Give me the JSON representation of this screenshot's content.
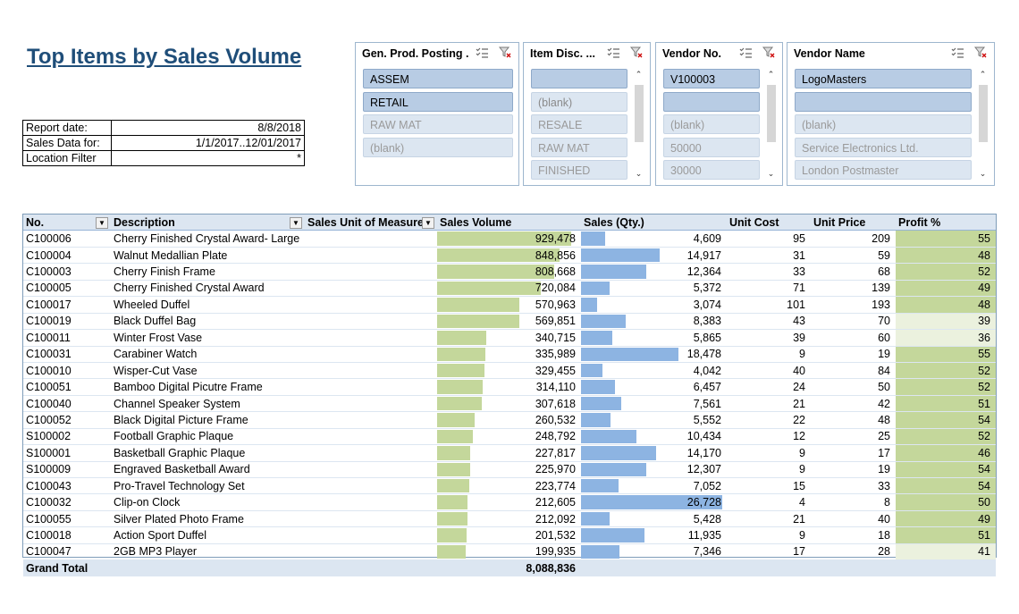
{
  "title": "Top Items by Sales Volume",
  "report_info": [
    {
      "label": "Report date:",
      "value": "8/8/2018"
    },
    {
      "label": "Sales Data for:",
      "value": "1/1/2017..12/01/2017"
    },
    {
      "label": "Location Filter",
      "value": "*"
    }
  ],
  "slicers": [
    {
      "header": "Gen. Prod. Posting ...",
      "items": [
        {
          "label": "ASSEM",
          "state": "selected"
        },
        {
          "label": "RETAIL",
          "state": "selected"
        },
        {
          "label": "RAW MAT",
          "state": "nodata"
        },
        {
          "label": "(blank)",
          "state": "nodata"
        }
      ]
    },
    {
      "header": "Item Disc. ...",
      "items": [
        {
          "label": "",
          "state": "selected"
        },
        {
          "label": "(blank)",
          "state": "unselected"
        },
        {
          "label": "RESALE",
          "state": "nodata"
        },
        {
          "label": "RAW MAT",
          "state": "nodata"
        },
        {
          "label": "FINISHED",
          "state": "nodata"
        }
      ]
    },
    {
      "header": "Vendor No.",
      "items": [
        {
          "label": "V100003",
          "state": "selected"
        },
        {
          "label": "",
          "state": "selected"
        },
        {
          "label": "(blank)",
          "state": "nodata"
        },
        {
          "label": "50000",
          "state": "nodata"
        },
        {
          "label": "30000",
          "state": "nodata"
        }
      ]
    },
    {
      "header": "Vendor Name",
      "items": [
        {
          "label": "LogoMasters",
          "state": "selected"
        },
        {
          "label": "",
          "state": "selected"
        },
        {
          "label": "(blank)",
          "state": "nodata"
        },
        {
          "label": "Service Electronics Ltd.",
          "state": "nodata"
        },
        {
          "label": "London Postmaster",
          "state": "nodata"
        }
      ]
    }
  ],
  "pivot": {
    "headers": {
      "no": "No.",
      "description": "Description",
      "uom": "Sales Unit of Measure",
      "sales_volume": "Sales Volume",
      "sales_qty": "Sales (Qty.)",
      "unit_cost": "Unit Cost",
      "unit_price": "Unit Price",
      "profit": "Profit %"
    },
    "rows": [
      {
        "no": "C100006",
        "desc": "Cherry Finished Crystal Award- Large",
        "uom": "",
        "vol": "929,478",
        "qty": "4,609",
        "cost": "95",
        "price": "209",
        "profit": "55"
      },
      {
        "no": "C100004",
        "desc": "Walnut Medallian Plate",
        "uom": "",
        "vol": "848,856",
        "qty": "14,917",
        "cost": "31",
        "price": "59",
        "profit": "48"
      },
      {
        "no": "C100003",
        "desc": "Cherry Finish Frame",
        "uom": "",
        "vol": "808,668",
        "qty": "12,364",
        "cost": "33",
        "price": "68",
        "profit": "52"
      },
      {
        "no": "C100005",
        "desc": "Cherry Finished Crystal Award",
        "uom": "",
        "vol": "720,084",
        "qty": "5,372",
        "cost": "71",
        "price": "139",
        "profit": "49"
      },
      {
        "no": "C100017",
        "desc": "Wheeled Duffel",
        "uom": "",
        "vol": "570,963",
        "qty": "3,074",
        "cost": "101",
        "price": "193",
        "profit": "48"
      },
      {
        "no": "C100019",
        "desc": "Black Duffel Bag",
        "uom": "",
        "vol": "569,851",
        "qty": "8,383",
        "cost": "43",
        "price": "70",
        "profit": "39"
      },
      {
        "no": "C100011",
        "desc": "Winter Frost Vase",
        "uom": "",
        "vol": "340,715",
        "qty": "5,865",
        "cost": "39",
        "price": "60",
        "profit": "36"
      },
      {
        "no": "C100031",
        "desc": "Carabiner Watch",
        "uom": "",
        "vol": "335,989",
        "qty": "18,478",
        "cost": "9",
        "price": "19",
        "profit": "55"
      },
      {
        "no": "C100010",
        "desc": "Wisper-Cut Vase",
        "uom": "",
        "vol": "329,455",
        "qty": "4,042",
        "cost": "40",
        "price": "84",
        "profit": "52"
      },
      {
        "no": "C100051",
        "desc": "Bamboo Digital Picutre Frame",
        "uom": "",
        "vol": "314,110",
        "qty": "6,457",
        "cost": "24",
        "price": "50",
        "profit": "52"
      },
      {
        "no": "C100040",
        "desc": "Channel Speaker System",
        "uom": "",
        "vol": "307,618",
        "qty": "7,561",
        "cost": "21",
        "price": "42",
        "profit": "51"
      },
      {
        "no": "C100052",
        "desc": "Black Digital Picture Frame",
        "uom": "",
        "vol": "260,532",
        "qty": "5,552",
        "cost": "22",
        "price": "48",
        "profit": "54"
      },
      {
        "no": "S100002",
        "desc": "Football Graphic Plaque",
        "uom": "",
        "vol": "248,792",
        "qty": "10,434",
        "cost": "12",
        "price": "25",
        "profit": "52"
      },
      {
        "no": "S100001",
        "desc": "Basketball Graphic Plaque",
        "uom": "",
        "vol": "227,817",
        "qty": "14,170",
        "cost": "9",
        "price": "17",
        "profit": "46"
      },
      {
        "no": "S100009",
        "desc": "Engraved Basketball Award",
        "uom": "",
        "vol": "225,970",
        "qty": "12,307",
        "cost": "9",
        "price": "19",
        "profit": "54"
      },
      {
        "no": "C100043",
        "desc": "Pro-Travel Technology Set",
        "uom": "",
        "vol": "223,774",
        "qty": "7,052",
        "cost": "15",
        "price": "33",
        "profit": "54"
      },
      {
        "no": "C100032",
        "desc": "Clip-on Clock",
        "uom": "",
        "vol": "212,605",
        "qty": "26,728",
        "cost": "4",
        "price": "8",
        "profit": "50"
      },
      {
        "no": "C100055",
        "desc": "Silver Plated Photo Frame",
        "uom": "",
        "vol": "212,092",
        "qty": "5,428",
        "cost": "21",
        "price": "40",
        "profit": "49"
      },
      {
        "no": "C100018",
        "desc": "Action Sport Duffel",
        "uom": "",
        "vol": "201,532",
        "qty": "11,935",
        "cost": "9",
        "price": "18",
        "profit": "51"
      },
      {
        "no": "C100047",
        "desc": "2GB MP3 Player",
        "uom": "",
        "vol": "199,935",
        "qty": "7,346",
        "cost": "17",
        "price": "28",
        "profit": "41"
      }
    ],
    "total": {
      "label": "Grand Total",
      "vol": "8,088,836"
    },
    "colors": {
      "vol_bar": "#c4d79b",
      "qty_bar": "#8db4e2",
      "profit_high": "#c4d79b",
      "profit_low": "#ebf1de"
    }
  }
}
